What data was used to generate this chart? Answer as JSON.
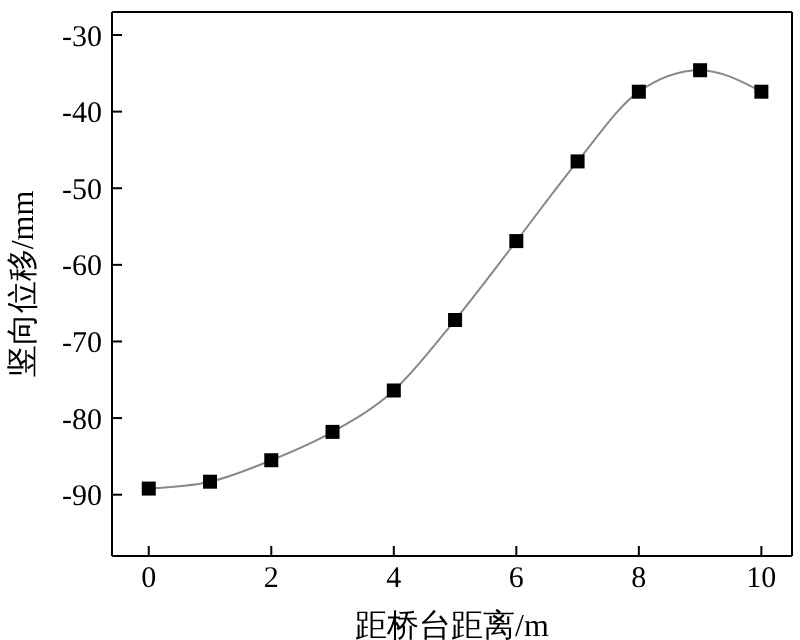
{
  "chart_data": {
    "type": "line",
    "xlabel": "距桥台距离/m",
    "ylabel": "竖向位移/mm",
    "x": [
      0,
      1,
      2,
      3,
      4,
      5,
      6,
      7,
      8,
      9,
      10
    ],
    "series": [
      {
        "color": "#000000",
        "values": [
          -89.2,
          -88.3,
          -85.5,
          -81.8,
          -76.4,
          -67.2,
          -56.9,
          -46.5,
          -37.4,
          -34.6,
          -37.4
        ]
      }
    ],
    "xlim": [
      -0.6,
      10.5
    ],
    "xticks": [
      0,
      2,
      4,
      6,
      8,
      10
    ],
    "ylim": [
      -98,
      -27
    ],
    "yticks": [
      -90,
      -80,
      -70,
      -60,
      -50,
      -40,
      -30
    ],
    "marker": "square",
    "line_style": "solid",
    "grid": false
  }
}
